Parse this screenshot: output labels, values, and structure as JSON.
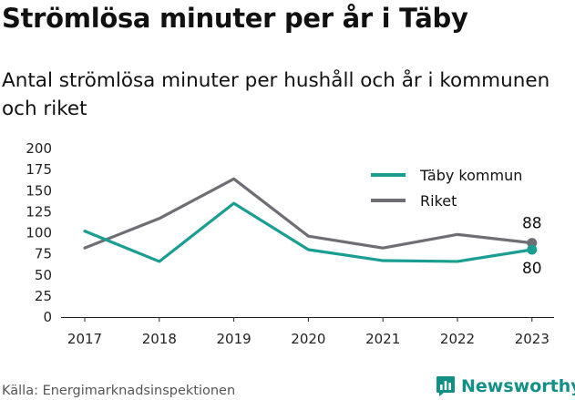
{
  "chart_data": {
    "type": "line",
    "title": "Strömlösa minuter per år i Täby",
    "subtitle": "Antal strömlösa minuter per hushåll och år i kommunen och riket",
    "x": [
      "2017",
      "2018",
      "2019",
      "2020",
      "2021",
      "2022",
      "2023"
    ],
    "series": [
      {
        "name": "Täby kommun",
        "color": "#1a9e91",
        "values": [
          102,
          66,
          135,
          80,
          67,
          66,
          80
        ]
      },
      {
        "name": "Riket",
        "color": "#6e6e74",
        "values": [
          82,
          117,
          164,
          96,
          82,
          98,
          88
        ]
      }
    ],
    "end_labels": [
      "88",
      "80"
    ],
    "ylim": [
      0,
      200
    ],
    "yticks": [
      "0",
      "25",
      "50",
      "75",
      "100",
      "125",
      "150",
      "175",
      "200"
    ],
    "grid": false,
    "legend_position": "top-right",
    "xlabel": "",
    "ylabel": ""
  },
  "source": "Källa: Energimarknadsinspektionen",
  "brand": {
    "name": "Newsworthy",
    "color": "#129086",
    "icon": "bar-chart-icon"
  }
}
